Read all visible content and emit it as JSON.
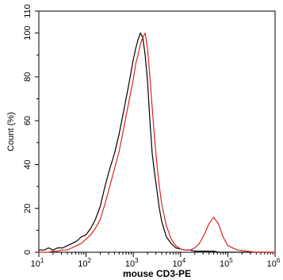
{
  "chart_data": {
    "type": "line",
    "title": "",
    "xlabel": "mouse CD3-PE",
    "ylabel": "Count  (%)",
    "x_scale": "log",
    "xlim": [
      10,
      1000000
    ],
    "ylim": [
      0,
      110
    ],
    "grid": false,
    "legend": "none",
    "x_ticks": [
      {
        "value": 10,
        "base": "10",
        "exp": "1"
      },
      {
        "value": 100,
        "base": "10",
        "exp": "2"
      },
      {
        "value": 1000,
        "base": "10",
        "exp": "3"
      },
      {
        "value": 10000,
        "base": "10",
        "exp": "4"
      },
      {
        "value": 100000,
        "base": "10",
        "exp": "5"
      },
      {
        "value": 1000000,
        "base": "10",
        "exp": "6"
      }
    ],
    "y_ticks": [
      "0",
      "20",
      "40",
      "60",
      "80",
      "100",
      "110"
    ],
    "series": [
      {
        "color": "#000000",
        "x": [
          10,
          13,
          16,
          20,
          25,
          32,
          40,
          50,
          63,
          79,
          100,
          126,
          158,
          200,
          251,
          316,
          398,
          501,
          631,
          794,
          1000,
          1122,
          1259,
          1413,
          1585,
          1778,
          1995,
          2239,
          2512,
          2818,
          3162,
          3548,
          3981,
          5012,
          6310,
          7943,
          10000,
          12589,
          15849,
          19953,
          25119,
          31623,
          39811,
          50119,
          63096,
          79433,
          100000,
          158489,
          251189,
          398107,
          630957,
          1000000
        ],
        "y": [
          1,
          1,
          2,
          1,
          2,
          2,
          3,
          4,
          5,
          7,
          8,
          11,
          15,
          21,
          30,
          38,
          45,
          54,
          65,
          76,
          88,
          93,
          97,
          100,
          98,
          90,
          78,
          60,
          45,
          36,
          28,
          20,
          14,
          7,
          4,
          2,
          1.5,
          1,
          1,
          0.5,
          0.5,
          0.5,
          0.5,
          0.5,
          0,
          0,
          0,
          0,
          0,
          0,
          0,
          0
        ]
      },
      {
        "color": "#e02020",
        "x": [
          10,
          13,
          16,
          20,
          25,
          32,
          40,
          50,
          63,
          79,
          100,
          126,
          158,
          200,
          251,
          316,
          398,
          501,
          631,
          794,
          1000,
          1122,
          1259,
          1413,
          1585,
          1778,
          1995,
          2239,
          2512,
          2818,
          3162,
          3548,
          3981,
          5012,
          6310,
          7943,
          10000,
          12589,
          15849,
          19953,
          25119,
          31623,
          39811,
          50119,
          63096,
          79433,
          100000,
          158489,
          251189,
          398107,
          630957,
          1000000
        ],
        "y": [
          0,
          0,
          0,
          0.5,
          0.5,
          1,
          1,
          2,
          3,
          4,
          6,
          8,
          11,
          15,
          22,
          30,
          38,
          46,
          57,
          68,
          79,
          86,
          90,
          95,
          98,
          100,
          93,
          80,
          66,
          52,
          40,
          30,
          22,
          12,
          6,
          3,
          1.5,
          1,
          1,
          2,
          4,
          8,
          13,
          16,
          13,
          7,
          3,
          1,
          0.5,
          0,
          0,
          0
        ]
      }
    ]
  }
}
